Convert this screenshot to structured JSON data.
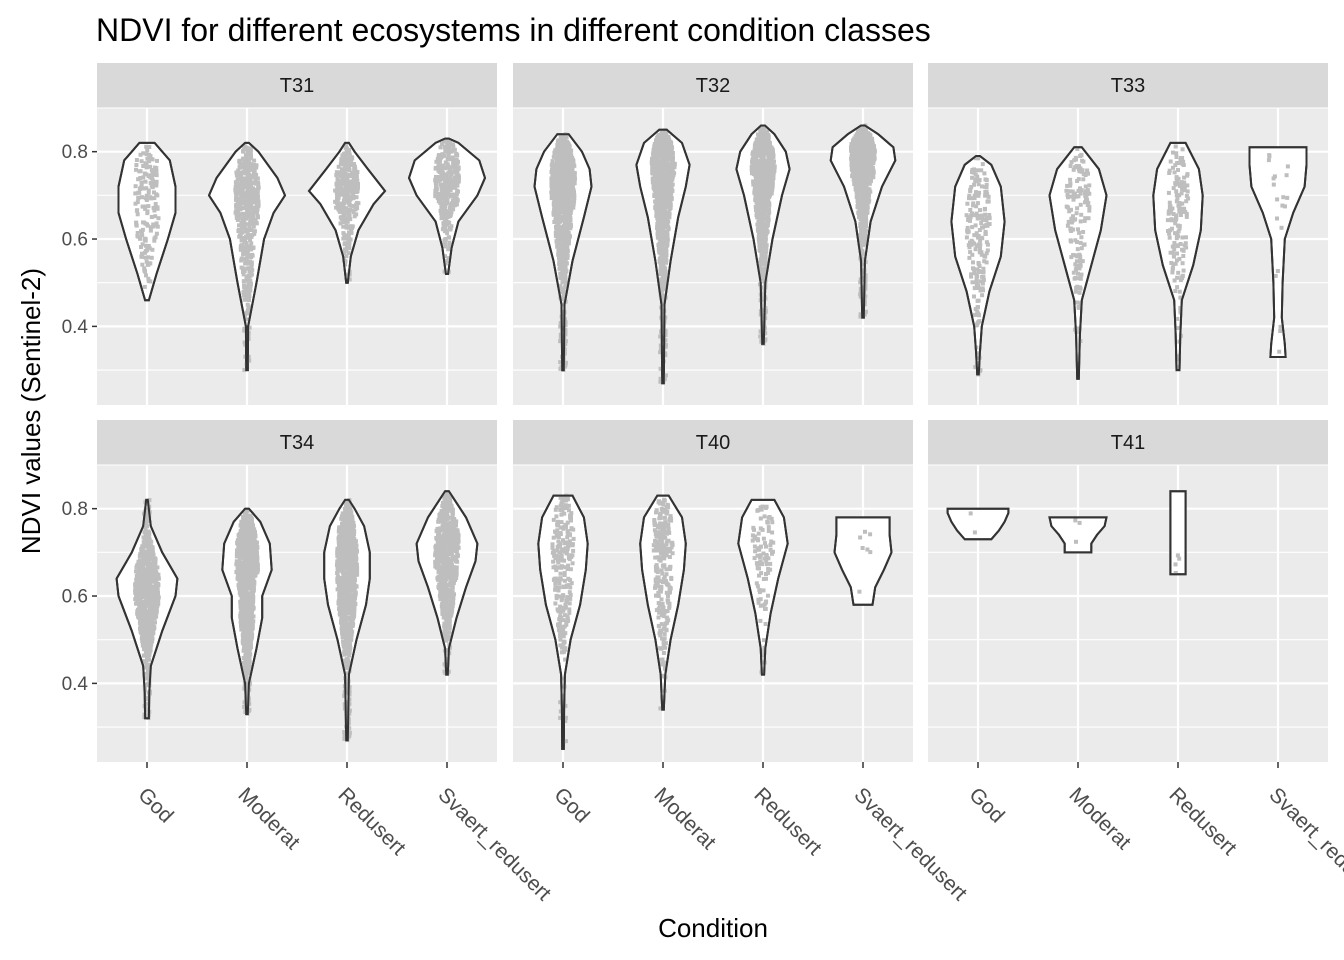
{
  "chart_data": {
    "type": "violin",
    "title": "NDVI for different ecosystems in different condition classes",
    "xlabel": "Condition",
    "ylabel": "NDVI values (Sentinel-2)",
    "categories": [
      "God",
      "Moderat",
      "Redusert",
      "Svaert_redusert"
    ],
    "y_ticks": [
      0.4,
      0.6,
      0.8
    ],
    "ylim": [
      0.22,
      0.9
    ],
    "grid": true,
    "colors": {
      "panel_bg": "#ebebeb",
      "strip_bg": "#d9d9d9",
      "grid": "#ffffff",
      "violin_fill": "#ffffff",
      "violin_stroke": "#333333",
      "points": "#bebebe"
    },
    "panels": [
      {
        "name": "T31",
        "violins": [
          {
            "category": "God",
            "min": 0.46,
            "max": 0.82,
            "profile": [
              [
                0.46,
                0.05
              ],
              [
                0.52,
                0.25
              ],
              [
                0.6,
                0.55
              ],
              [
                0.66,
                0.75
              ],
              [
                0.72,
                0.75
              ],
              [
                0.78,
                0.6
              ],
              [
                0.82,
                0.2
              ]
            ],
            "n": 160
          },
          {
            "category": "Moderat",
            "min": 0.3,
            "max": 0.82,
            "profile": [
              [
                0.3,
                0.02
              ],
              [
                0.4,
                0.03
              ],
              [
                0.5,
                0.25
              ],
              [
                0.6,
                0.45
              ],
              [
                0.66,
                0.7
              ],
              [
                0.7,
                1.0
              ],
              [
                0.74,
                0.8
              ],
              [
                0.8,
                0.3
              ],
              [
                0.82,
                0.05
              ]
            ],
            "n": 500
          },
          {
            "category": "Redusert",
            "min": 0.5,
            "max": 0.82,
            "profile": [
              [
                0.5,
                0.02
              ],
              [
                0.56,
                0.1
              ],
              [
                0.62,
                0.3
              ],
              [
                0.68,
                0.7
              ],
              [
                0.71,
                1.0
              ],
              [
                0.76,
                0.55
              ],
              [
                0.8,
                0.2
              ],
              [
                0.82,
                0.05
              ]
            ],
            "n": 320
          },
          {
            "category": "Svaert_redusert",
            "min": 0.52,
            "max": 0.83,
            "profile": [
              [
                0.52,
                0.03
              ],
              [
                0.58,
                0.12
              ],
              [
                0.64,
                0.3
              ],
              [
                0.7,
                0.8
              ],
              [
                0.74,
                1.0
              ],
              [
                0.78,
                0.85
              ],
              [
                0.82,
                0.3
              ],
              [
                0.83,
                0.05
              ]
            ],
            "n": 320
          }
        ]
      },
      {
        "name": "T32",
        "violins": [
          {
            "category": "God",
            "min": 0.3,
            "max": 0.84,
            "profile": [
              [
                0.3,
                0.02
              ],
              [
                0.45,
                0.04
              ],
              [
                0.55,
                0.25
              ],
              [
                0.65,
                0.55
              ],
              [
                0.72,
                0.75
              ],
              [
                0.76,
                0.7
              ],
              [
                0.8,
                0.5
              ],
              [
                0.84,
                0.15
              ]
            ],
            "n": 900
          },
          {
            "category": "Moderat",
            "min": 0.27,
            "max": 0.85,
            "profile": [
              [
                0.27,
                0.02
              ],
              [
                0.45,
                0.04
              ],
              [
                0.55,
                0.2
              ],
              [
                0.65,
                0.4
              ],
              [
                0.72,
                0.6
              ],
              [
                0.77,
                0.7
              ],
              [
                0.82,
                0.5
              ],
              [
                0.85,
                0.1
              ]
            ],
            "n": 900
          },
          {
            "category": "Redusert",
            "min": 0.36,
            "max": 0.86,
            "profile": [
              [
                0.36,
                0.02
              ],
              [
                0.5,
                0.06
              ],
              [
                0.6,
                0.25
              ],
              [
                0.7,
                0.5
              ],
              [
                0.76,
                0.7
              ],
              [
                0.8,
                0.6
              ],
              [
                0.84,
                0.3
              ],
              [
                0.86,
                0.05
              ]
            ],
            "n": 800
          },
          {
            "category": "Svaert_redusert",
            "min": 0.42,
            "max": 0.86,
            "profile": [
              [
                0.42,
                0.02
              ],
              [
                0.55,
                0.05
              ],
              [
                0.64,
                0.2
              ],
              [
                0.72,
                0.5
              ],
              [
                0.78,
                0.85
              ],
              [
                0.81,
                0.8
              ],
              [
                0.84,
                0.4
              ],
              [
                0.86,
                0.05
              ]
            ],
            "n": 700
          }
        ]
      },
      {
        "name": "T33",
        "violins": [
          {
            "category": "God",
            "min": 0.29,
            "max": 0.79,
            "profile": [
              [
                0.29,
                0.02
              ],
              [
                0.34,
                0.05
              ],
              [
                0.4,
                0.1
              ],
              [
                0.48,
                0.3
              ],
              [
                0.56,
                0.6
              ],
              [
                0.64,
                0.7
              ],
              [
                0.72,
                0.6
              ],
              [
                0.77,
                0.35
              ],
              [
                0.79,
                0.05
              ]
            ],
            "n": 200
          },
          {
            "category": "Moderat",
            "min": 0.28,
            "max": 0.81,
            "profile": [
              [
                0.28,
                0.02
              ],
              [
                0.38,
                0.05
              ],
              [
                0.46,
                0.1
              ],
              [
                0.54,
                0.35
              ],
              [
                0.62,
                0.6
              ],
              [
                0.7,
                0.75
              ],
              [
                0.76,
                0.55
              ],
              [
                0.81,
                0.1
              ]
            ],
            "n": 150
          },
          {
            "category": "Redusert",
            "min": 0.3,
            "max": 0.82,
            "profile": [
              [
                0.3,
                0.04
              ],
              [
                0.38,
                0.06
              ],
              [
                0.46,
                0.1
              ],
              [
                0.54,
                0.4
              ],
              [
                0.62,
                0.6
              ],
              [
                0.7,
                0.65
              ],
              [
                0.76,
                0.55
              ],
              [
                0.82,
                0.2
              ]
            ],
            "n": 150
          },
          {
            "category": "Svaert_redusert",
            "min": 0.33,
            "max": 0.81,
            "profile": [
              [
                0.33,
                0.2
              ],
              [
                0.36,
                0.18
              ],
              [
                0.42,
                0.1
              ],
              [
                0.5,
                0.12
              ],
              [
                0.6,
                0.18
              ],
              [
                0.66,
                0.4
              ],
              [
                0.72,
                0.7
              ],
              [
                0.77,
                0.75
              ],
              [
                0.81,
                0.75
              ]
            ],
            "n": 20
          }
        ]
      },
      {
        "name": "T34",
        "violins": [
          {
            "category": "God",
            "min": 0.32,
            "max": 0.82,
            "profile": [
              [
                0.32,
                0.05
              ],
              [
                0.38,
                0.06
              ],
              [
                0.44,
                0.1
              ],
              [
                0.52,
                0.4
              ],
              [
                0.6,
                0.75
              ],
              [
                0.64,
                0.8
              ],
              [
                0.7,
                0.4
              ],
              [
                0.76,
                0.1
              ],
              [
                0.82,
                0.02
              ]
            ],
            "n": 800
          },
          {
            "category": "Moderat",
            "min": 0.33,
            "max": 0.8,
            "profile": [
              [
                0.33,
                0.02
              ],
              [
                0.4,
                0.05
              ],
              [
                0.48,
                0.25
              ],
              [
                0.55,
                0.4
              ],
              [
                0.6,
                0.4
              ],
              [
                0.66,
                0.65
              ],
              [
                0.72,
                0.6
              ],
              [
                0.77,
                0.35
              ],
              [
                0.8,
                0.05
              ]
            ],
            "n": 900
          },
          {
            "category": "Redusert",
            "min": 0.27,
            "max": 0.82,
            "profile": [
              [
                0.27,
                0.02
              ],
              [
                0.42,
                0.05
              ],
              [
                0.5,
                0.25
              ],
              [
                0.58,
                0.5
              ],
              [
                0.64,
                0.6
              ],
              [
                0.7,
                0.6
              ],
              [
                0.76,
                0.45
              ],
              [
                0.8,
                0.2
              ],
              [
                0.82,
                0.05
              ]
            ],
            "n": 900
          },
          {
            "category": "Svaert_redusert",
            "min": 0.42,
            "max": 0.84,
            "profile": [
              [
                0.42,
                0.02
              ],
              [
                0.48,
                0.05
              ],
              [
                0.55,
                0.25
              ],
              [
                0.62,
                0.5
              ],
              [
                0.68,
                0.75
              ],
              [
                0.72,
                0.8
              ],
              [
                0.78,
                0.5
              ],
              [
                0.82,
                0.2
              ],
              [
                0.84,
                0.05
              ]
            ],
            "n": 700
          }
        ]
      },
      {
        "name": "T40",
        "violins": [
          {
            "category": "God",
            "min": 0.25,
            "max": 0.83,
            "profile": [
              [
                0.25,
                0.02
              ],
              [
                0.34,
                0.03
              ],
              [
                0.42,
                0.05
              ],
              [
                0.5,
                0.2
              ],
              [
                0.58,
                0.45
              ],
              [
                0.66,
                0.6
              ],
              [
                0.72,
                0.65
              ],
              [
                0.78,
                0.55
              ],
              [
                0.83,
                0.25
              ]
            ],
            "n": 250
          },
          {
            "category": "Moderat",
            "min": 0.34,
            "max": 0.83,
            "profile": [
              [
                0.34,
                0.02
              ],
              [
                0.42,
                0.06
              ],
              [
                0.5,
                0.2
              ],
              [
                0.58,
                0.4
              ],
              [
                0.66,
                0.55
              ],
              [
                0.72,
                0.6
              ],
              [
                0.78,
                0.5
              ],
              [
                0.83,
                0.15
              ]
            ],
            "n": 250
          },
          {
            "category": "Redusert",
            "min": 0.42,
            "max": 0.82,
            "profile": [
              [
                0.42,
                0.03
              ],
              [
                0.48,
                0.06
              ],
              [
                0.56,
                0.2
              ],
              [
                0.64,
                0.4
              ],
              [
                0.72,
                0.65
              ],
              [
                0.78,
                0.55
              ],
              [
                0.82,
                0.3
              ]
            ],
            "n": 100
          },
          {
            "category": "Svaert_redusert",
            "min": 0.58,
            "max": 0.78,
            "profile": [
              [
                0.58,
                0.25
              ],
              [
                0.62,
                0.32
              ],
              [
                0.66,
                0.55
              ],
              [
                0.7,
                0.75
              ],
              [
                0.74,
                0.7
              ],
              [
                0.78,
                0.7
              ]
            ],
            "n": 7
          }
        ]
      },
      {
        "name": "T41",
        "violins": [
          {
            "category": "God",
            "min": 0.73,
            "max": 0.8,
            "profile": [
              [
                0.73,
                0.35
              ],
              [
                0.75,
                0.55
              ],
              [
                0.77,
                0.7
              ],
              [
                0.79,
                0.8
              ],
              [
                0.8,
                0.8
              ]
            ],
            "n": 2
          },
          {
            "category": "Moderat",
            "min": 0.7,
            "max": 0.78,
            "profile": [
              [
                0.7,
                0.35
              ],
              [
                0.72,
                0.35
              ],
              [
                0.74,
                0.5
              ],
              [
                0.76,
                0.7
              ],
              [
                0.78,
                0.75
              ]
            ],
            "n": 3
          },
          {
            "category": "Redusert",
            "min": 0.65,
            "max": 0.84,
            "profile": [
              [
                0.65,
                0.2
              ],
              [
                0.7,
                0.2
              ],
              [
                0.76,
                0.2
              ],
              [
                0.8,
                0.2
              ],
              [
                0.84,
                0.2
              ]
            ],
            "n": 4
          },
          {
            "category": "Svaert_redusert",
            "min": null,
            "max": null,
            "profile": [],
            "n": 0
          }
        ]
      }
    ]
  }
}
